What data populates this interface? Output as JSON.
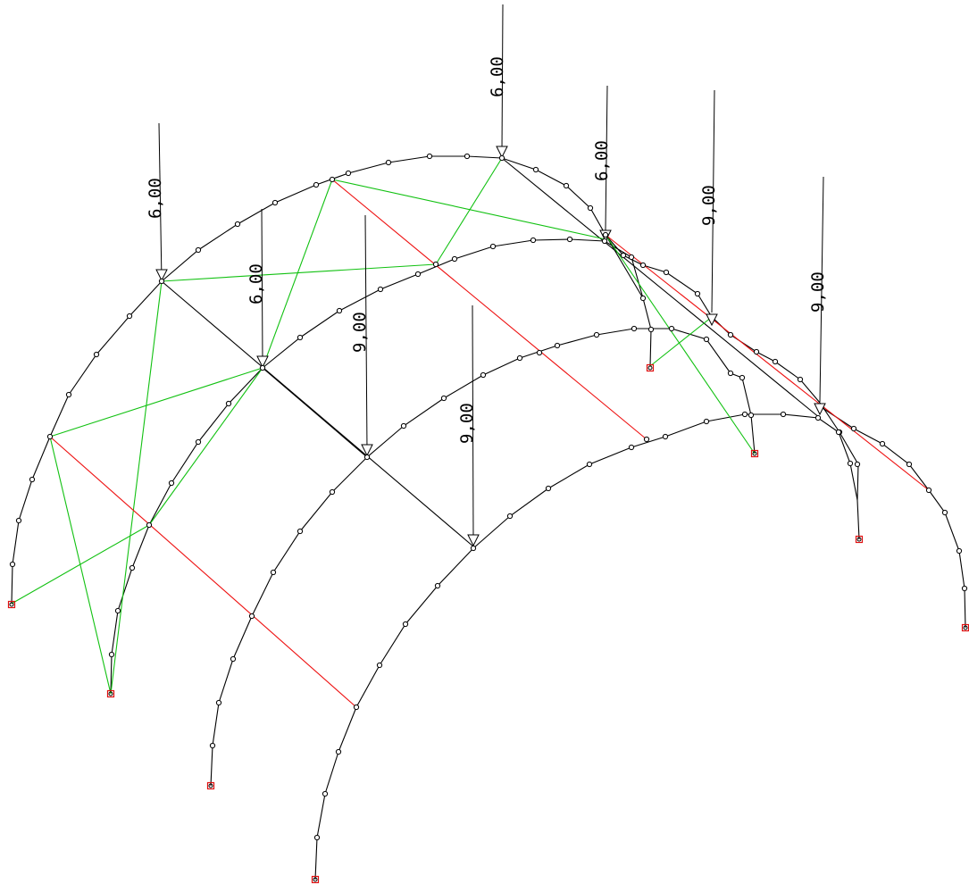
{
  "drawing": {
    "colors": {
      "frame": "#000000",
      "bracing": "#11c111",
      "ties": "#ee1111",
      "support": "#e01010"
    },
    "load_labels": [
      "6,00",
      "6,00",
      "6,00",
      "6,00",
      "9,00",
      "9,00",
      "9,00",
      "9,00"
    ]
  }
}
